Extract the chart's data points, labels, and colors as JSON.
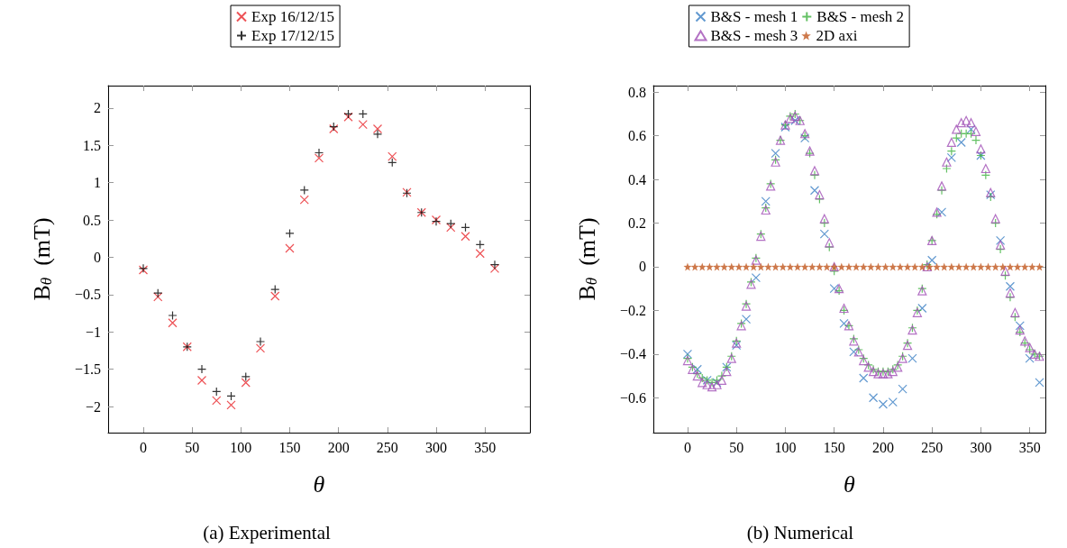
{
  "chart_data": [
    {
      "type": "scatter",
      "title": "(a) Experimental",
      "xlabel": "θ",
      "ylabel": "B$_{θ}$  (mT)",
      "xlim": [
        -36,
        396
      ],
      "ylim": [
        -2.35,
        2.3
      ],
      "xticks": [
        0,
        50,
        100,
        150,
        200,
        250,
        300,
        350
      ],
      "yticks": [
        -2,
        -1.5,
        -1,
        -0.5,
        0,
        0.5,
        1,
        1.5,
        2
      ],
      "grid": false,
      "legend": "top",
      "x": [
        0,
        15,
        30,
        45,
        60,
        75,
        90,
        105,
        120,
        135,
        150,
        165,
        180,
        195,
        210,
        225,
        240,
        255,
        270,
        285,
        300,
        315,
        330,
        345,
        360
      ],
      "series": [
        {
          "name": "Exp 16/12/15",
          "color": "#e8262b",
          "marker": "cross",
          "values": [
            -0.17,
            -0.53,
            -0.88,
            -1.2,
            -1.65,
            -1.92,
            -1.98,
            -1.68,
            -1.22,
            -0.52,
            0.12,
            0.77,
            1.33,
            1.72,
            1.88,
            1.78,
            1.72,
            1.35,
            0.87,
            0.6,
            0.5,
            0.4,
            0.28,
            0.05,
            -0.15
          ]
        },
        {
          "name": "Exp 17/12/15",
          "color": "#000000",
          "marker": "plus",
          "values": [
            -0.15,
            -0.48,
            -0.78,
            -1.2,
            -1.5,
            -1.8,
            -1.86,
            -1.6,
            -1.13,
            -0.43,
            0.32,
            0.9,
            1.4,
            1.75,
            1.92,
            1.92,
            1.65,
            1.27,
            0.86,
            0.6,
            0.48,
            0.45,
            0.4,
            0.17,
            -0.1
          ]
        }
      ]
    },
    {
      "type": "scatter",
      "title": "(b) Numerical",
      "xlabel": "θ",
      "ylabel": "B$_{θ}$  (mT)",
      "xlim": [
        -35,
        366
      ],
      "ylim": [
        -0.76,
        0.83
      ],
      "xticks": [
        0,
        50,
        100,
        150,
        200,
        250,
        300,
        350
      ],
      "yticks": [
        -0.6,
        -0.4,
        -0.2,
        0,
        0.2,
        0.4,
        0.6,
        0.8
      ],
      "grid": false,
      "legend": "top",
      "series": [
        {
          "name": "B&S - mesh 1",
          "color": "#3b7fc4",
          "marker": "cross",
          "x": [
            0,
            10,
            20,
            30,
            40,
            50,
            60,
            70,
            80,
            90,
            100,
            110,
            120,
            130,
            140,
            150,
            160,
            170,
            180,
            190,
            200,
            210,
            220,
            230,
            240,
            250,
            260,
            270,
            280,
            290,
            300,
            310,
            320,
            330,
            340,
            350,
            360
          ],
          "values": [
            -0.4,
            -0.47,
            -0.52,
            -0.53,
            -0.46,
            -0.36,
            -0.24,
            -0.05,
            0.3,
            0.52,
            0.64,
            0.67,
            0.59,
            0.35,
            0.15,
            -0.1,
            -0.26,
            -0.39,
            -0.51,
            -0.6,
            -0.63,
            -0.62,
            -0.56,
            -0.42,
            -0.19,
            0.03,
            0.25,
            0.5,
            0.57,
            0.63,
            0.51,
            0.33,
            0.12,
            -0.09,
            -0.27,
            -0.42,
            -0.53
          ]
        },
        {
          "name": "B&S - mesh 2",
          "color": "#3db23d",
          "marker": "plus",
          "x": [
            0,
            5,
            10,
            15,
            20,
            25,
            30,
            35,
            40,
            45,
            50,
            55,
            60,
            65,
            70,
            75,
            80,
            85,
            90,
            95,
            100,
            105,
            110,
            115,
            120,
            125,
            130,
            135,
            140,
            145,
            150,
            155,
            160,
            165,
            170,
            175,
            180,
            185,
            190,
            195,
            200,
            205,
            210,
            215,
            220,
            225,
            230,
            235,
            240,
            245,
            250,
            255,
            260,
            265,
            270,
            275,
            280,
            285,
            290,
            295,
            300,
            305,
            310,
            315,
            320,
            325,
            330,
            335,
            340,
            345,
            350,
            355,
            360
          ],
          "values": [
            -0.42,
            -0.46,
            -0.49,
            -0.51,
            -0.52,
            -0.53,
            -0.52,
            -0.5,
            -0.46,
            -0.41,
            -0.34,
            -0.26,
            -0.17,
            -0.07,
            0.04,
            0.15,
            0.27,
            0.38,
            0.49,
            0.58,
            0.65,
            0.69,
            0.7,
            0.67,
            0.6,
            0.52,
            0.42,
            0.31,
            0.2,
            0.09,
            -0.02,
            -0.11,
            -0.2,
            -0.27,
            -0.33,
            -0.38,
            -0.42,
            -0.45,
            -0.47,
            -0.48,
            -0.48,
            -0.48,
            -0.47,
            -0.45,
            -0.41,
            -0.35,
            -0.28,
            -0.2,
            -0.1,
            0.01,
            0.12,
            0.24,
            0.35,
            0.45,
            0.53,
            0.59,
            0.61,
            0.61,
            0.61,
            0.58,
            0.51,
            0.42,
            0.32,
            0.2,
            0.08,
            -0.04,
            -0.14,
            -0.23,
            -0.3,
            -0.35,
            -0.38,
            -0.4,
            -0.41
          ]
        },
        {
          "name": "B&S - mesh 3",
          "color": "#a04fb5",
          "marker": "triangle",
          "x": [
            0,
            5,
            10,
            15,
            20,
            25,
            30,
            35,
            40,
            45,
            50,
            55,
            60,
            65,
            70,
            75,
            80,
            85,
            90,
            95,
            100,
            105,
            110,
            115,
            120,
            125,
            130,
            135,
            140,
            145,
            150,
            155,
            160,
            165,
            170,
            175,
            180,
            185,
            190,
            195,
            200,
            205,
            210,
            215,
            220,
            225,
            230,
            235,
            240,
            245,
            250,
            255,
            260,
            265,
            270,
            275,
            280,
            285,
            290,
            295,
            300,
            305,
            310,
            315,
            320,
            325,
            330,
            335,
            340,
            345,
            350,
            355,
            360
          ],
          "values": [
            -0.43,
            -0.47,
            -0.5,
            -0.53,
            -0.54,
            -0.55,
            -0.54,
            -0.52,
            -0.48,
            -0.42,
            -0.35,
            -0.27,
            -0.18,
            -0.08,
            0.03,
            0.14,
            0.26,
            0.37,
            0.48,
            0.58,
            0.65,
            0.68,
            0.69,
            0.67,
            0.61,
            0.53,
            0.44,
            0.33,
            0.22,
            0.11,
            0,
            -0.1,
            -0.19,
            -0.27,
            -0.34,
            -0.39,
            -0.43,
            -0.46,
            -0.48,
            -0.49,
            -0.49,
            -0.49,
            -0.48,
            -0.46,
            -0.42,
            -0.36,
            -0.29,
            -0.21,
            -0.11,
            0,
            0.12,
            0.25,
            0.37,
            0.48,
            0.57,
            0.63,
            0.66,
            0.67,
            0.66,
            0.62,
            0.54,
            0.45,
            0.34,
            0.22,
            0.1,
            -0.02,
            -0.12,
            -0.21,
            -0.29,
            -0.34,
            -0.37,
            -0.4,
            -0.41
          ]
        },
        {
          "name": "2D axi",
          "color": "#c0561d",
          "marker": "star",
          "x": [
            0,
            7.5,
            15,
            22.5,
            30,
            37.5,
            45,
            52.5,
            60,
            67.5,
            75,
            82.5,
            90,
            97.5,
            105,
            112.5,
            120,
            127.5,
            135,
            142.5,
            150,
            157.5,
            165,
            172.5,
            180,
            187.5,
            195,
            202.5,
            210,
            217.5,
            225,
            232.5,
            240,
            247.5,
            255,
            262.5,
            270,
            277.5,
            285,
            292.5,
            300,
            307.5,
            315,
            322.5,
            330,
            337.5,
            345,
            352.5,
            360
          ],
          "values": [
            0,
            0,
            0,
            0,
            0,
            0,
            0,
            0,
            0,
            0,
            0,
            0,
            0,
            0,
            0,
            0,
            0,
            0,
            0,
            0,
            0,
            0,
            0,
            0,
            0,
            0,
            0,
            0,
            0,
            0,
            0,
            0,
            0,
            0,
            0,
            0,
            0,
            0,
            0,
            0,
            0,
            0,
            0,
            0,
            0,
            0,
            0,
            0,
            0
          ]
        }
      ]
    }
  ]
}
